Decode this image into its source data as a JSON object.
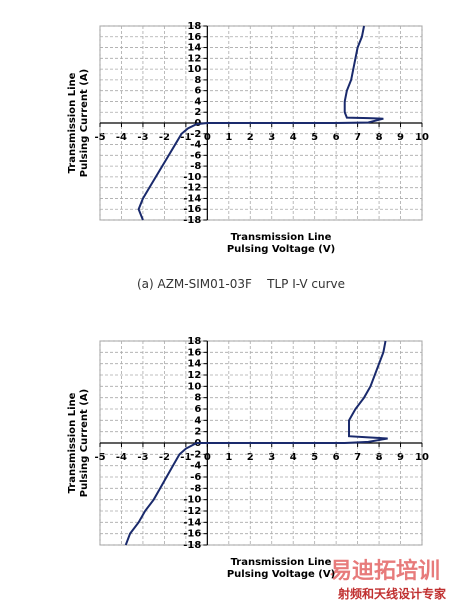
{
  "chart_data": [
    {
      "type": "line",
      "xlabel": "Transmission Line Pulsing Voltage (V)",
      "ylabel": "Transmission Line Pulsing Current (A)",
      "caption": "(a) AZM-SIM01-03F    TLP I-V curve",
      "xlim": [
        -5,
        10
      ],
      "xticks": [
        -5,
        -4,
        -3,
        -2,
        -1,
        0,
        1,
        2,
        3,
        4,
        5,
        6,
        7,
        8,
        9,
        10
      ],
      "ylim": [
        -18,
        18
      ],
      "yticks": [
        -18,
        -16,
        -14,
        -12,
        -10,
        -8,
        -6,
        -4,
        -2,
        0,
        2,
        4,
        6,
        8,
        10,
        12,
        14,
        16,
        18
      ],
      "grid": true,
      "x": [
        -3.0,
        -3.2,
        -3.0,
        -2.7,
        -2.4,
        -2.1,
        -1.8,
        -1.5,
        -1.2,
        -0.9,
        -0.5,
        0,
        3,
        6,
        7.5,
        8.2,
        7.5,
        6.5,
        6.4,
        6.4,
        6.5,
        6.7,
        6.8,
        6.9,
        7.0,
        7.2,
        7.3
      ],
      "series": [
        {
          "color": "#1a2a6c",
          "values": [
            -18,
            -16,
            -14,
            -12,
            -10,
            -8,
            -6,
            -4,
            -2,
            -1,
            -0.2,
            0,
            0,
            0,
            0.1,
            0.8,
            0.9,
            1,
            2,
            4,
            6,
            8,
            10,
            12,
            14,
            16,
            18
          ]
        }
      ]
    },
    {
      "type": "line",
      "xlabel": "Transmission Line Pulsing Voltage (V)",
      "ylabel": "Transmission Line Pulsing Current (A)",
      "xlim": [
        -5,
        10
      ],
      "xticks": [
        -5,
        -4,
        -3,
        -2,
        -1,
        0,
        1,
        2,
        3,
        4,
        5,
        6,
        7,
        8,
        9,
        10
      ],
      "ylim": [
        -18,
        18
      ],
      "yticks": [
        -18,
        -16,
        -14,
        -12,
        -10,
        -8,
        -6,
        -4,
        -2,
        0,
        2,
        4,
        6,
        8,
        10,
        12,
        14,
        16,
        18
      ],
      "grid": true,
      "x": [
        -3.8,
        -3.6,
        -3.2,
        -2.9,
        -2.5,
        -2.2,
        -1.9,
        -1.6,
        -1.3,
        -1.0,
        -0.5,
        3,
        6.4,
        7.5,
        8.4,
        7.5,
        6.6,
        6.6,
        6.6,
        6.9,
        7.3,
        7.6,
        7.8,
        8.0,
        8.2,
        8.3
      ],
      "series": [
        {
          "color": "#1a2a6c",
          "values": [
            -18,
            -16,
            -14,
            -12,
            -10,
            -8,
            -6,
            -4,
            -2,
            -1,
            0,
            0,
            0,
            0.2,
            0.8,
            1,
            1.2,
            2,
            4,
            6,
            8,
            10,
            12,
            14,
            16,
            18
          ]
        }
      ]
    }
  ],
  "watermark": {
    "title": "易迪拓培训",
    "subtitle": "射频和天线设计专家"
  }
}
